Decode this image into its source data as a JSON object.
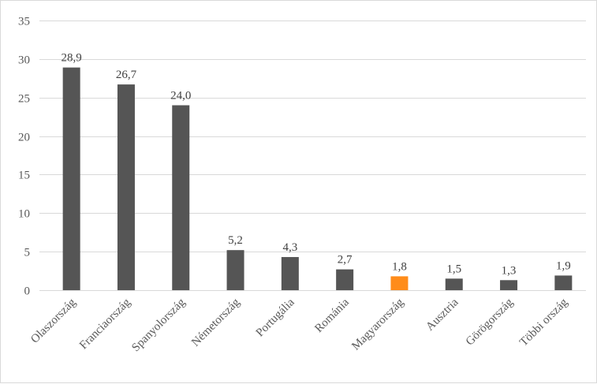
{
  "chart_data": {
    "type": "bar",
    "categories": [
      "Olaszország",
      "Franciaország",
      "Spanyolország",
      "Németország",
      "Portugália",
      "Románia",
      "Magyarország",
      "Ausztria",
      "Görögország",
      "Többi ország"
    ],
    "values": [
      28.9,
      26.7,
      24.0,
      5.2,
      4.3,
      2.7,
      1.8,
      1.5,
      1.3,
      1.9
    ],
    "data_labels": [
      "28,9",
      "26,7",
      "24,0",
      "5,2",
      "4,3",
      "2,7",
      "1,8",
      "1,5",
      "1,3",
      "1,9"
    ],
    "ylim": [
      0,
      35
    ],
    "yticks": [
      0,
      5,
      10,
      15,
      20,
      25,
      30,
      35
    ],
    "grid": true,
    "legend": "none",
    "colors": {
      "default": "#555555",
      "highlight": "#ff8c1a",
      "highlight_category": "Magyarország"
    }
  }
}
